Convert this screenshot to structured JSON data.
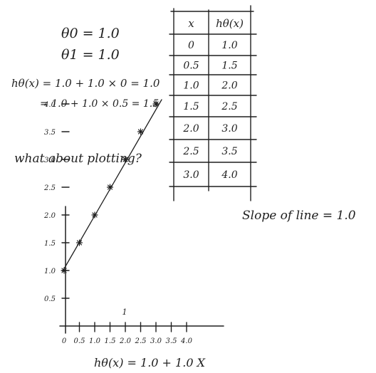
{
  "equations": {
    "theta0": "θ0 = 1.0",
    "theta1": "θ1 = 1.0",
    "line1": "hθ(x) = 1.0 + 1.0 × 0 = 1.0",
    "line2": "= 1.0 + 1.0 × 0.5 = 1.5",
    "question": "what about plotting?",
    "slope": "Slope of line = 1.0",
    "hypothesis": "hθ(x) = 1.0 + 1.0 X"
  },
  "table": {
    "headers": [
      "x",
      "hθ(x)"
    ],
    "rows": [
      [
        "0",
        "1.0"
      ],
      [
        "0.5",
        "1.5"
      ],
      [
        "1.0",
        "2.0"
      ],
      [
        "1.5",
        "2.5"
      ],
      [
        "2.0",
        "3.0"
      ],
      [
        "2.5",
        "3.5"
      ],
      [
        "3.0",
        "4.0"
      ]
    ]
  },
  "plot": {
    "x_ticks": [
      "0",
      "0.5",
      "1.0",
      "1.5",
      "2.0",
      "2.5",
      "3.0",
      "3.5",
      "4.0"
    ],
    "y_ticks": [
      "0.5",
      "1.0",
      "1.5",
      "2.0",
      "2.5",
      "3.0",
      "3.5",
      "4.0"
    ],
    "points": [
      {
        "x": 0,
        "y": 1.0
      },
      {
        "x": 0.5,
        "y": 1.5
      },
      {
        "x": 1.0,
        "y": 2.0
      },
      {
        "x": 1.5,
        "y": 2.5
      },
      {
        "x": 2.0,
        "y": 3.0
      },
      {
        "x": 2.5,
        "y": 3.5
      },
      {
        "x": 3.0,
        "y": 4.0
      }
    ],
    "stray_mark": "1"
  },
  "colors": {
    "ink": "#1f1f1f",
    "paper": "#ffffff"
  }
}
